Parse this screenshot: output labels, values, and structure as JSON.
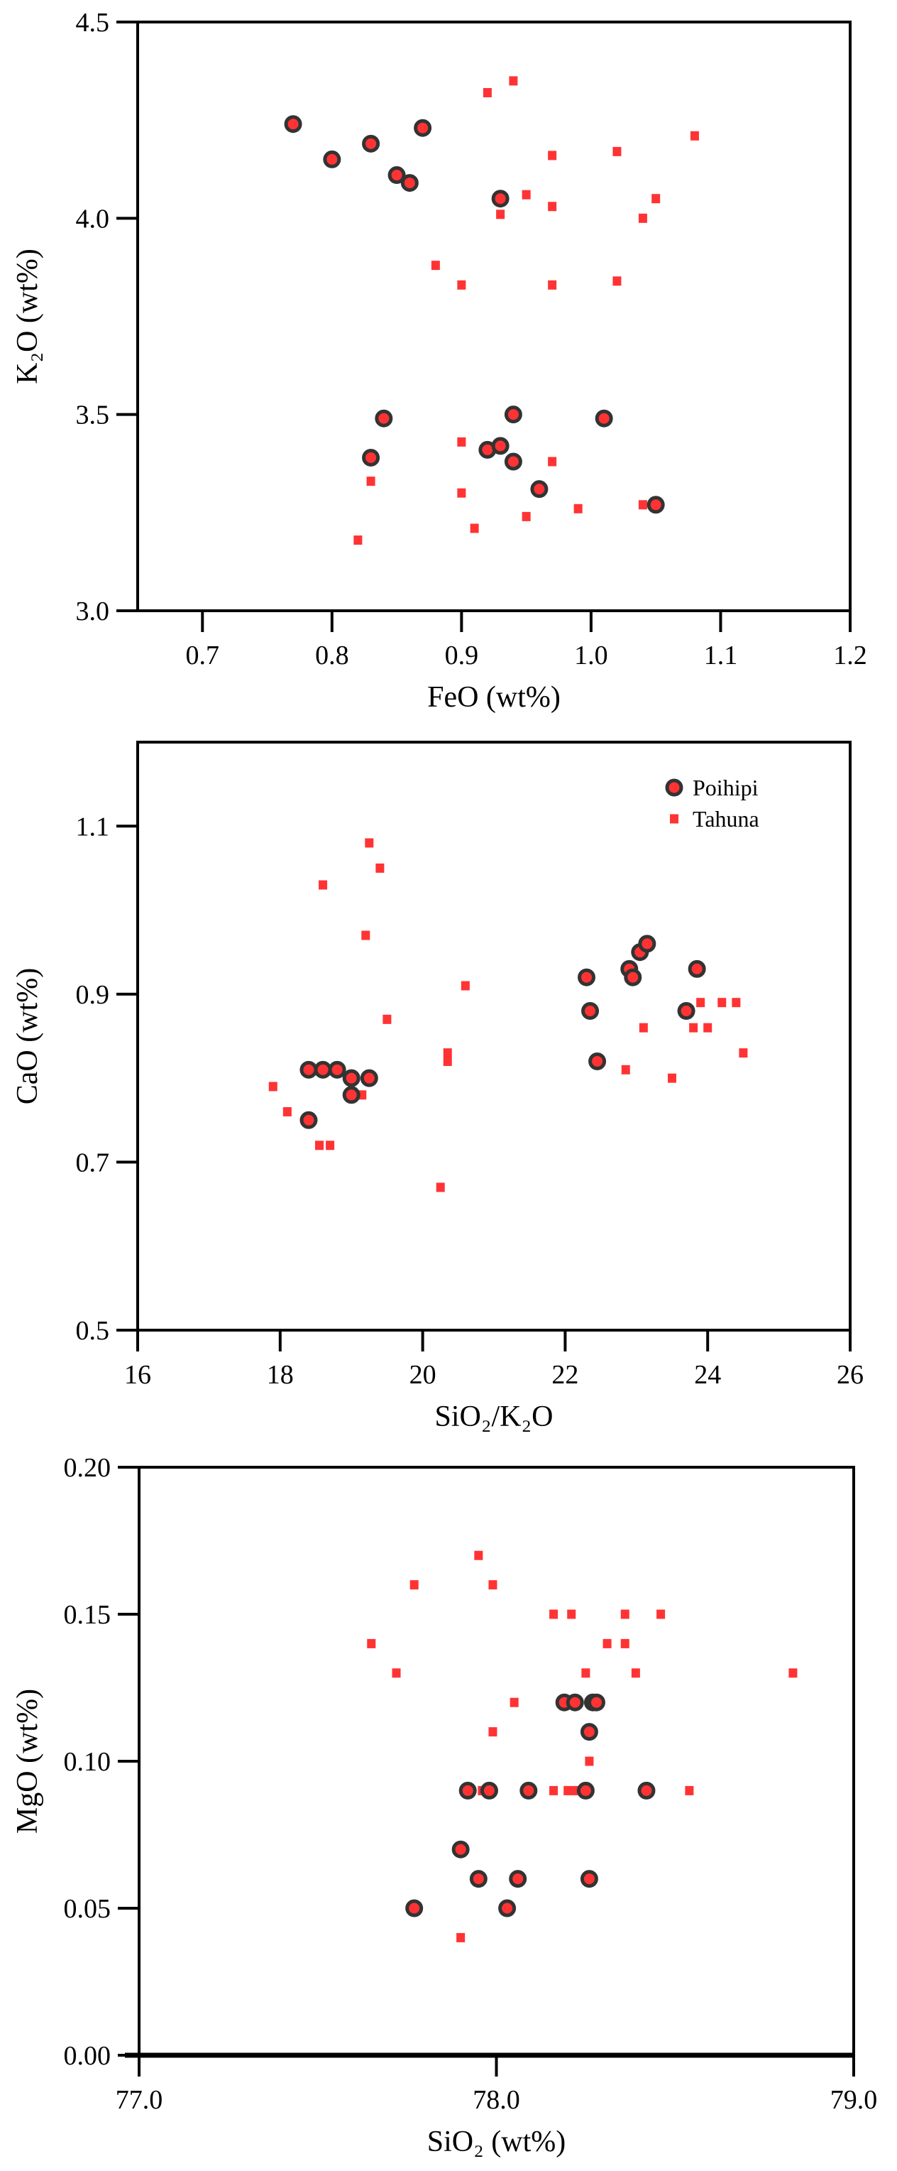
{
  "chart_data": [
    {
      "type": "scatter",
      "title": "",
      "xlabel": "FeO (wt%)",
      "ylabel": "K₂O (wt%)",
      "xlim": [
        0.65,
        1.2
      ],
      "ylim": [
        3.0,
        4.5
      ],
      "xticks": [
        "0.7",
        "0.8",
        "0.9",
        "1.0",
        "1.1",
        "1.2"
      ],
      "yticks": [
        "3.0",
        "3.5",
        "4.0",
        "4.5"
      ],
      "grid": false,
      "series": [
        {
          "name": "Poihipi",
          "marker": "circle",
          "color": "#ff3333",
          "edge": "#333333",
          "x": [
            0.77,
            0.8,
            0.83,
            0.87,
            0.85,
            0.86,
            0.93,
            0.84,
            0.83,
            0.92,
            0.93,
            0.94,
            0.94,
            0.96,
            1.01,
            1.05
          ],
          "y": [
            4.24,
            4.15,
            4.19,
            4.23,
            4.11,
            4.09,
            4.05,
            3.49,
            3.39,
            3.41,
            3.42,
            3.5,
            3.38,
            3.31,
            3.49,
            3.27
          ]
        },
        {
          "name": "Tahuna",
          "marker": "square",
          "color": "#ff3333",
          "x": [
            0.92,
            0.94,
            1.02,
            1.08,
            0.97,
            0.95,
            0.93,
            0.97,
            1.05,
            1.04,
            0.88,
            0.9,
            0.97,
            1.02,
            0.9,
            0.83,
            0.97,
            0.9,
            0.91,
            0.95,
            0.99,
            1.04,
            0.82
          ],
          "y": [
            4.32,
            4.35,
            4.17,
            4.21,
            4.16,
            4.06,
            4.01,
            4.03,
            4.05,
            4.0,
            3.88,
            3.83,
            3.83,
            3.84,
            3.43,
            3.33,
            3.38,
            3.3,
            3.21,
            3.24,
            3.26,
            3.27,
            3.18
          ]
        }
      ]
    },
    {
      "type": "scatter",
      "title": "",
      "xlabel": "SiO₂/K₂O",
      "ylabel": "CaO (wt%)",
      "xlim": [
        16,
        26
      ],
      "ylim": [
        0.5,
        1.2
      ],
      "xticks": [
        "16",
        "18",
        "20",
        "22",
        "24",
        "26"
      ],
      "yticks": [
        "0.5",
        "0.7",
        "0.9",
        "1.1"
      ],
      "grid": false,
      "legend": {
        "placement": "top-right",
        "entries": [
          "Poihipi",
          "Tahuna"
        ]
      },
      "series": [
        {
          "name": "Poihipi",
          "marker": "circle",
          "color": "#ff3333",
          "edge": "#333333",
          "x": [
            18.4,
            18.6,
            18.8,
            19.0,
            19.25,
            19.0,
            18.4,
            22.3,
            22.35,
            22.45,
            22.9,
            22.95,
            23.05,
            23.15,
            23.85,
            23.7
          ],
          "y": [
            0.81,
            0.81,
            0.81,
            0.8,
            0.8,
            0.78,
            0.75,
            0.92,
            0.88,
            0.82,
            0.93,
            0.92,
            0.95,
            0.96,
            0.93,
            0.88
          ]
        },
        {
          "name": "Tahuna",
          "marker": "square",
          "color": "#ff3333",
          "x": [
            17.9,
            18.1,
            18.55,
            18.7,
            18.6,
            19.25,
            19.4,
            19.2,
            19.5,
            19.15,
            20.35,
            20.35,
            20.6,
            20.25,
            22.85,
            23.1,
            23.5,
            23.8,
            23.9,
            24.0,
            24.2,
            24.4,
            24.5
          ],
          "y": [
            0.79,
            0.76,
            0.72,
            0.72,
            1.03,
            1.08,
            1.05,
            0.97,
            0.87,
            0.78,
            0.83,
            0.82,
            0.91,
            0.67,
            0.81,
            0.86,
            0.8,
            0.86,
            0.89,
            0.86,
            0.89,
            0.89,
            0.83
          ]
        }
      ]
    },
    {
      "type": "scatter",
      "title": "",
      "xlabel": "SiO₂ (wt%)",
      "ylabel": "MgO (wt%)",
      "xlim": [
        77.0,
        79.0
      ],
      "ylim": [
        0.0,
        0.2
      ],
      "xticks": [
        "77.0",
        "78.0",
        "79.0"
      ],
      "yticks": [
        "0.00",
        "0.05",
        "0.10",
        "0.15",
        "0.20"
      ],
      "grid": false,
      "series": [
        {
          "name": "Poihipi",
          "marker": "circle",
          "color": "#ff3333",
          "edge": "#333333",
          "x": [
            77.77,
            77.9,
            77.95,
            77.92,
            77.98,
            78.06,
            78.09,
            78.03,
            78.19,
            78.22,
            78.25,
            78.26,
            78.26,
            78.27,
            78.28,
            78.42
          ],
          "y": [
            0.05,
            0.07,
            0.06,
            0.09,
            0.09,
            0.06,
            0.09,
            0.05,
            0.12,
            0.12,
            0.09,
            0.11,
            0.06,
            0.12,
            0.12,
            0.09
          ]
        },
        {
          "name": "Tahuna",
          "marker": "square",
          "color": "#ff3333",
          "x": [
            77.65,
            77.72,
            77.77,
            77.95,
            77.99,
            77.99,
            77.96,
            77.9,
            78.05,
            78.16,
            78.21,
            78.16,
            78.2,
            78.22,
            78.25,
            78.26,
            78.36,
            78.36,
            78.31,
            78.39,
            78.46,
            78.54,
            78.83
          ],
          "y": [
            0.14,
            0.13,
            0.16,
            0.17,
            0.16,
            0.11,
            0.09,
            0.04,
            0.12,
            0.15,
            0.15,
            0.09,
            0.09,
            0.09,
            0.13,
            0.1,
            0.15,
            0.14,
            0.14,
            0.13,
            0.15,
            0.09,
            0.13
          ]
        }
      ]
    }
  ]
}
